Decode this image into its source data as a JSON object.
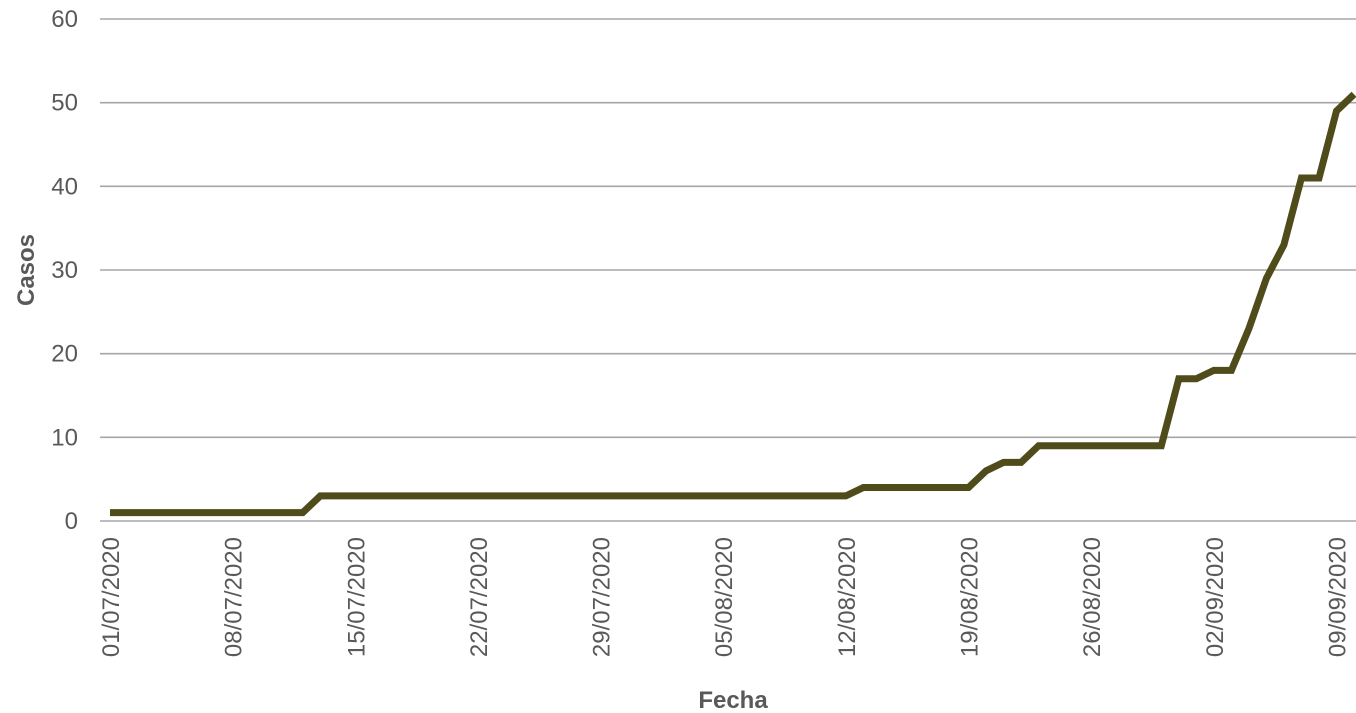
{
  "chart_data": {
    "type": "line",
    "title": "",
    "xlabel": "Fecha",
    "ylabel": "Casos",
    "ylim": [
      0,
      60
    ],
    "yticks": [
      "0",
      "10",
      "20",
      "30",
      "40",
      "50",
      "60"
    ],
    "xticks": [
      "01/07/2020",
      "08/07/2020",
      "15/07/2020",
      "22/07/2020",
      "29/07/2020",
      "05/08/2020",
      "12/08/2020",
      "19/08/2020",
      "26/08/2020",
      "02/09/2020",
      "09/09/2020"
    ],
    "grid": true,
    "legend": "none",
    "colors": {
      "line": "#4f4b1a",
      "grid": "#a6a6a6",
      "text": "#595959"
    },
    "x": [
      "01/07/2020",
      "02/07/2020",
      "03/07/2020",
      "04/07/2020",
      "05/07/2020",
      "06/07/2020",
      "07/07/2020",
      "08/07/2020",
      "09/07/2020",
      "10/07/2020",
      "11/07/2020",
      "12/07/2020",
      "13/07/2020",
      "14/07/2020",
      "15/07/2020",
      "16/07/2020",
      "17/07/2020",
      "18/07/2020",
      "19/07/2020",
      "20/07/2020",
      "21/07/2020",
      "22/07/2020",
      "23/07/2020",
      "24/07/2020",
      "25/07/2020",
      "26/07/2020",
      "27/07/2020",
      "28/07/2020",
      "29/07/2020",
      "30/07/2020",
      "31/07/2020",
      "01/08/2020",
      "02/08/2020",
      "03/08/2020",
      "04/08/2020",
      "05/08/2020",
      "06/08/2020",
      "07/08/2020",
      "08/08/2020",
      "09/08/2020",
      "10/08/2020",
      "11/08/2020",
      "12/08/2020",
      "13/08/2020",
      "14/08/2020",
      "15/08/2020",
      "16/08/2020",
      "17/08/2020",
      "18/08/2020",
      "19/08/2020",
      "20/08/2020",
      "21/08/2020",
      "22/08/2020",
      "23/08/2020",
      "24/08/2020",
      "25/08/2020",
      "26/08/2020",
      "27/08/2020",
      "28/08/2020",
      "29/08/2020",
      "30/08/2020",
      "31/08/2020",
      "01/09/2020",
      "02/09/2020",
      "03/09/2020",
      "04/09/2020",
      "05/09/2020",
      "06/09/2020",
      "07/09/2020",
      "08/09/2020",
      "09/09/2020",
      "10/09/2020"
    ],
    "series": [
      {
        "values": [
          1,
          1,
          1,
          1,
          1,
          1,
          1,
          1,
          1,
          1,
          1,
          1,
          3,
          3,
          3,
          3,
          3,
          3,
          3,
          3,
          3,
          3,
          3,
          3,
          3,
          3,
          3,
          3,
          3,
          3,
          3,
          3,
          3,
          3,
          3,
          3,
          3,
          3,
          3,
          3,
          3,
          3,
          3,
          4,
          4,
          4,
          4,
          4,
          4,
          4,
          6,
          7,
          7,
          9,
          9,
          9,
          9,
          9,
          9,
          9,
          9,
          17,
          17,
          18,
          18,
          23,
          29,
          33,
          41,
          41,
          49,
          51
        ]
      }
    ]
  }
}
